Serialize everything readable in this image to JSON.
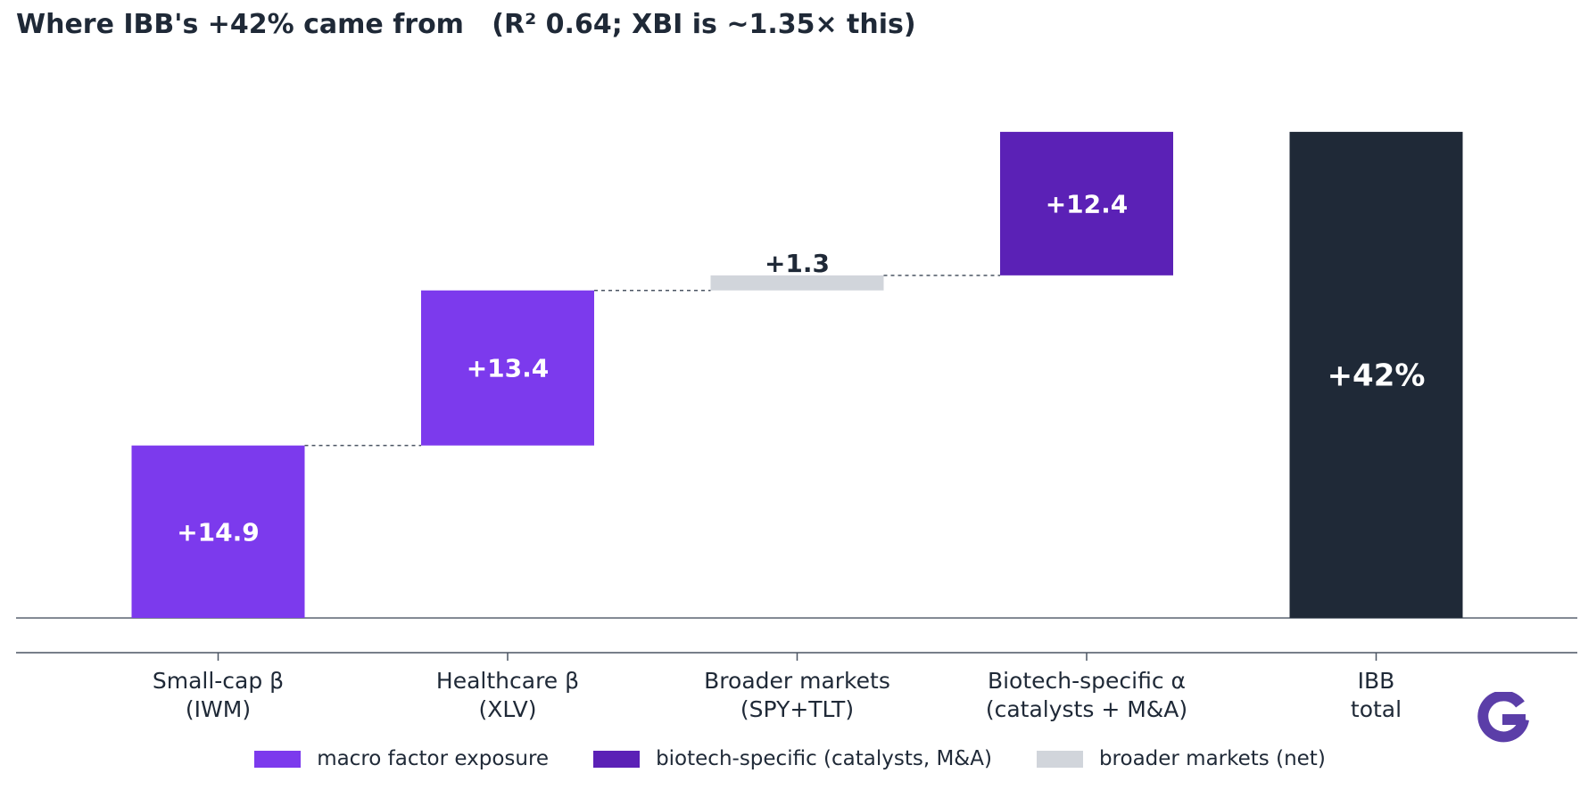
{
  "chart_data": {
    "type": "bar",
    "subtype": "waterfall",
    "title": "Where IBB's +42% came from   (R² 0.64; XBI is ~1.35× this)",
    "categories": [
      {
        "line1": "Small-cap β",
        "line2": "(IWM)"
      },
      {
        "line1": "Healthcare β",
        "line2": "(XLV)"
      },
      {
        "line1": "Broader markets",
        "line2": "(SPY+TLT)"
      },
      {
        "line1": "Biotech-specific α",
        "line2": "(catalysts + M&A)"
      },
      {
        "line1": "IBB",
        "line2": "total"
      }
    ],
    "bars": [
      {
        "value": 14.9,
        "label": "+14.9",
        "kind": "macro"
      },
      {
        "value": 13.4,
        "label": "+13.4",
        "kind": "macro"
      },
      {
        "value": 1.3,
        "label": "+1.3",
        "kind": "broader"
      },
      {
        "value": 12.4,
        "label": "+12.4",
        "kind": "biotech"
      },
      {
        "value": 42.0,
        "label": "+42%",
        "kind": "total"
      }
    ],
    "ylim": [
      -3,
      48
    ],
    "colors": {
      "macro": "#7c3aed",
      "biotech": "#5b21b6",
      "broader": "#d1d5db",
      "total": "#1f2937",
      "axis": "#4b5563",
      "text": "#1f2937"
    },
    "legend": [
      {
        "label": "macro factor exposure",
        "kind": "macro"
      },
      {
        "label": "biotech-specific (catalysts, M&A)",
        "kind": "biotech"
      },
      {
        "label": "broader markets (net)",
        "kind": "broader"
      }
    ],
    "legend_position": "bottom-center",
    "grid": false
  },
  "logo": {
    "icon": "g-logo-icon",
    "color": "#5b3ea8"
  }
}
